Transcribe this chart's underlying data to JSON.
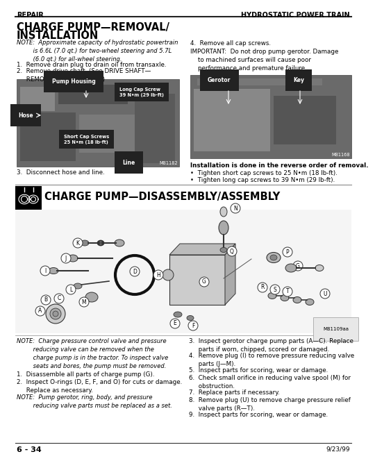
{
  "header_left": "REPAIR",
  "header_right": "HYDROSTATIC POWER TRAIN",
  "title_line1": "CHARGE PUMP—REMOVAL/",
  "title_line2": "INSTALLATION",
  "note1": "NOTE:  Approximate capacity of hydrostatic powertrain\n         is 6.6L (7.0 qt.) for two-wheel steering and 5.7L\n         (6.0 qt.) for all-wheel steering.",
  "step1": "1.  Remove drain plug to drain oil from transaxle.",
  "step2": "2.  Remove drive shaft. (See DRIVE SHAFT—\n     REMOVAL/INSTALLATION.)",
  "step3": "3.  Disconnect hose and line.",
  "step4": "4.  Remove all cap screws.",
  "important": "IMPORTANT:  Do not drop pump gerotor. Damage\n    to machined surfaces will cause poor\n    performance and premature failure.",
  "install_note": "Installation is done in the reverse order of removal.",
  "install_b1": "•  Tighten short cap screws to 25 N•m (18 lb-ft).",
  "install_b2": "•  Tighten long cap screws to 39 N•m (29 lb-ft).",
  "img1_pump": "Pump Housing",
  "img1_hose": "Hose",
  "img1_long": "Long Cap Screw\n39 N•m (29 lb-ft)",
  "img1_short": "Short Cap Screws\n25 N•m (18 lb-ft)",
  "img1_line": "Line",
  "img1_code": "M81182",
  "img2_gerotor": "Gerotor",
  "img2_key": "Key",
  "img2_code": "M81168",
  "section_title": "CHARGE PUMP—DISASSEMBLY/ASSEMBLY",
  "diagram_code": "M81109aa",
  "note_bottom1": "NOTE:  Charge pressure control valve and pressure\n         reducing valve can be removed when the\n         charge pump is in the tractor. To inspect valve\n         seats and bores, the pump must be removed.",
  "step_b1": "1.  Disassemble all parts of charge pump (G).",
  "step_b2": "2.  Inspect O-rings (D, E, F, and O) for cuts or damage.\n     Replace as necessary.",
  "note_bottom2": "NOTE:  Pump gerotor, ring, body, and pressure\n         reducing valve parts must be replaced as a set.",
  "step_r3": "3.  Inspect gerotor charge pump parts (A—C). Replace\n     parts if worn, chipped, scored or damaged.",
  "step_r4": "4.  Remove plug (I) to remove pressure reducing valve\n     parts (J—M).",
  "step_r5": "5.  Inspect parts for scoring, wear or damage.",
  "step_r6": "6.  Check small orifice in reducing valve spool (M) for\n     obstruction.",
  "step_r7": "7.  Replace parts if necessary.",
  "step_r8": "8.  Remove plug (U) to remove charge pressure relief\n     valve parts (R—T).",
  "step_r9": "9.  Inspect parts for scoring, wear or damage.",
  "footer_left": "6 - 34",
  "footer_right": "9/23/99"
}
